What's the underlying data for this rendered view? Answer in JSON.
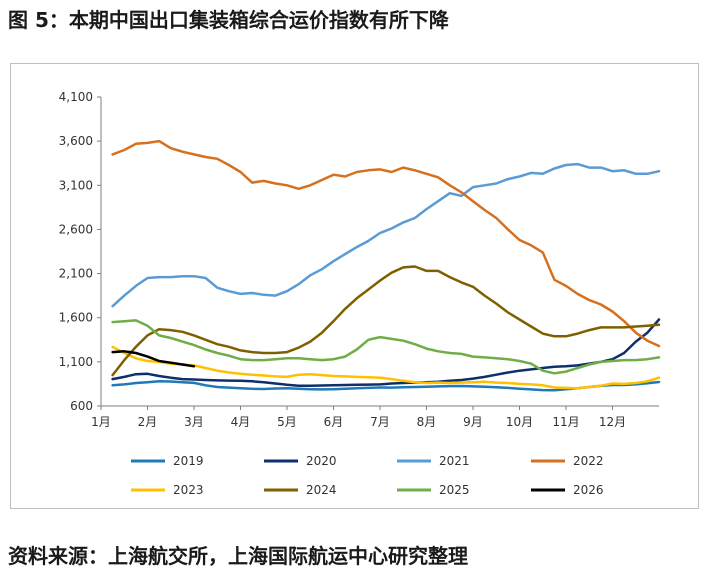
{
  "figure": {
    "title": "图 5：本期中国出口集装箱综合运价指数有所下降",
    "source": "资料来源：上海航交所，上海国际航运中心研究整理"
  },
  "chart_data": {
    "type": "line",
    "title": "",
    "xlabel": "",
    "ylabel": "",
    "xlim": [
      1,
      13
    ],
    "ylim": [
      600,
      4100
    ],
    "yticks": [
      600,
      1100,
      1600,
      2100,
      2600,
      3100,
      3600,
      4100
    ],
    "ytick_labels": [
      "600",
      "1,100",
      "1,600",
      "2,100",
      "2,600",
      "3,100",
      "3,600",
      "4,100"
    ],
    "xticks": [
      1,
      2,
      3,
      4,
      5,
      6,
      7,
      8,
      9,
      10,
      11,
      12
    ],
    "xtick_labels": [
      "1月",
      "2月",
      "3月",
      "4月",
      "5月",
      "6月",
      "7月",
      "8月",
      "9月",
      "10月",
      "11月",
      "12月"
    ],
    "grid": false,
    "legend_position": "bottom",
    "series": [
      {
        "name": "2019",
        "color": "#1f7ab5",
        "x": [
          1.25,
          1.5,
          1.75,
          2,
          2.25,
          2.5,
          2.75,
          3,
          3.25,
          3.5,
          3.75,
          4,
          4.25,
          4.5,
          4.75,
          5,
          5.25,
          5.5,
          5.75,
          6,
          6.25,
          6.5,
          6.75,
          7,
          7.25,
          7.5,
          7.75,
          8,
          8.25,
          8.5,
          8.75,
          9,
          9.25,
          9.5,
          9.75,
          10,
          10.25,
          10.5,
          10.75,
          11,
          11.25,
          11.5,
          11.75,
          12,
          12.25,
          12.5,
          12.75,
          13
        ],
        "y": [
          835,
          845,
          860,
          870,
          880,
          878,
          870,
          862,
          835,
          815,
          808,
          800,
          795,
          792,
          798,
          800,
          795,
          790,
          788,
          790,
          795,
          800,
          805,
          810,
          808,
          812,
          815,
          818,
          822,
          825,
          826,
          822,
          818,
          812,
          805,
          795,
          788,
          780,
          778,
          790,
          800,
          815,
          828,
          838,
          838,
          845,
          858,
          872
        ]
      },
      {
        "name": "2020",
        "color": "#0e2f6b",
        "x": [
          1.25,
          1.5,
          1.75,
          2,
          2.25,
          2.5,
          2.75,
          3,
          3.25,
          3.5,
          3.75,
          4,
          4.25,
          4.5,
          4.75,
          5,
          5.25,
          5.5,
          5.75,
          6,
          6.25,
          6.5,
          6.75,
          7,
          7.25,
          7.5,
          7.75,
          8,
          8.25,
          8.5,
          8.75,
          9,
          9.25,
          9.5,
          9.75,
          10,
          10.25,
          10.5,
          10.75,
          11,
          11.25,
          11.5,
          11.75,
          12,
          12.25,
          12.5,
          12.75,
          13
        ],
        "y": [
          905,
          930,
          960,
          965,
          940,
          920,
          905,
          900,
          895,
          890,
          888,
          885,
          880,
          870,
          855,
          840,
          830,
          830,
          832,
          835,
          838,
          840,
          842,
          845,
          855,
          860,
          865,
          870,
          875,
          885,
          895,
          910,
          930,
          955,
          980,
          1000,
          1015,
          1030,
          1045,
          1050,
          1060,
          1080,
          1100,
          1130,
          1200,
          1330,
          1430,
          1580
        ]
      },
      {
        "name": "2021",
        "color": "#5b9bd5",
        "x": [
          1.25,
          1.5,
          1.75,
          2,
          2.25,
          2.5,
          2.75,
          3,
          3.25,
          3.5,
          3.75,
          4,
          4.25,
          4.5,
          4.75,
          5,
          5.25,
          5.5,
          5.75,
          6,
          6.25,
          6.5,
          6.75,
          7,
          7.25,
          7.5,
          7.75,
          8,
          8.25,
          8.5,
          8.75,
          9,
          9.25,
          9.5,
          9.75,
          10,
          10.25,
          10.5,
          10.75,
          11,
          11.25,
          11.5,
          11.75,
          12,
          12.25,
          12.5,
          12.75,
          13
        ],
        "y": [
          1730,
          1850,
          1960,
          2050,
          2060,
          2060,
          2070,
          2070,
          2050,
          1940,
          1900,
          1870,
          1880,
          1860,
          1850,
          1900,
          1980,
          2080,
          2150,
          2240,
          2320,
          2400,
          2470,
          2560,
          2610,
          2680,
          2730,
          2830,
          2920,
          3010,
          2980,
          3080,
          3100,
          3120,
          3170,
          3200,
          3240,
          3230,
          3290,
          3330,
          3340,
          3300,
          3300,
          3260,
          3270,
          3230,
          3230,
          3260
        ]
      },
      {
        "name": "2022",
        "color": "#d5701f",
        "x": [
          1.25,
          1.5,
          1.75,
          2,
          2.25,
          2.5,
          2.75,
          3,
          3.25,
          3.5,
          3.75,
          4,
          4.25,
          4.5,
          4.75,
          5,
          5.25,
          5.5,
          5.75,
          6,
          6.25,
          6.5,
          6.75,
          7,
          7.25,
          7.5,
          7.75,
          8,
          8.25,
          8.5,
          8.75,
          9,
          9.25,
          9.5,
          9.75,
          10,
          10.25,
          10.5,
          10.75,
          11,
          11.25,
          11.5,
          11.75,
          12,
          12.25,
          12.5,
          12.75,
          13
        ],
        "y": [
          3450,
          3500,
          3570,
          3580,
          3600,
          3520,
          3480,
          3450,
          3420,
          3400,
          3330,
          3250,
          3130,
          3150,
          3120,
          3100,
          3060,
          3100,
          3160,
          3220,
          3200,
          3250,
          3270,
          3280,
          3250,
          3300,
          3270,
          3230,
          3190,
          3100,
          3020,
          2920,
          2820,
          2730,
          2600,
          2480,
          2420,
          2340,
          2030,
          1960,
          1870,
          1800,
          1750,
          1670,
          1560,
          1430,
          1340,
          1280
        ]
      },
      {
        "name": "2023",
        "color": "#ffc000",
        "x": [
          1.25,
          1.5,
          1.75,
          2,
          2.25,
          2.5,
          2.75,
          3,
          3.25,
          3.5,
          3.75,
          4,
          4.25,
          4.5,
          4.75,
          5,
          5.25,
          5.5,
          5.75,
          6,
          6.25,
          6.5,
          6.75,
          7,
          7.25,
          7.5,
          7.75,
          8,
          8.25,
          8.5,
          8.75,
          9,
          9.25,
          9.5,
          9.75,
          10,
          10.25,
          10.5,
          10.75,
          11,
          11.25,
          11.5,
          11.75,
          12,
          12.25,
          12.5,
          12.75,
          13
        ],
        "y": [
          1270,
          1200,
          1140,
          1110,
          1100,
          1080,
          1070,
          1060,
          1030,
          1000,
          980,
          965,
          955,
          945,
          935,
          930,
          955,
          960,
          950,
          940,
          935,
          930,
          925,
          920,
          905,
          885,
          870,
          860,
          865,
          860,
          865,
          870,
          875,
          865,
          860,
          850,
          845,
          835,
          810,
          805,
          800,
          815,
          830,
          855,
          850,
          860,
          880,
          920
        ]
      },
      {
        "name": "2024",
        "color": "#7f6000",
        "x": [
          1.25,
          1.5,
          1.75,
          2,
          2.25,
          2.5,
          2.75,
          3,
          3.25,
          3.5,
          3.75,
          4,
          4.25,
          4.5,
          4.75,
          5,
          5.25,
          5.5,
          5.75,
          6,
          6.25,
          6.5,
          6.75,
          7,
          7.25,
          7.5,
          7.75,
          8,
          8.25,
          8.5,
          8.75,
          9,
          9.25,
          9.5,
          9.75,
          10,
          10.25,
          10.5,
          10.75,
          11,
          11.25,
          11.5,
          11.75,
          12,
          12.25,
          12.5,
          12.75,
          13
        ],
        "y": [
          950,
          1120,
          1270,
          1400,
          1470,
          1460,
          1440,
          1400,
          1350,
          1300,
          1270,
          1230,
          1210,
          1200,
          1200,
          1210,
          1260,
          1330,
          1430,
          1560,
          1700,
          1820,
          1920,
          2020,
          2110,
          2170,
          2180,
          2130,
          2130,
          2060,
          2000,
          1950,
          1850,
          1760,
          1660,
          1580,
          1500,
          1420,
          1390,
          1390,
          1420,
          1460,
          1490,
          1490,
          1490,
          1500,
          1510,
          1520
        ]
      },
      {
        "name": "2025",
        "color": "#70ad47",
        "x": [
          1.25,
          1.5,
          1.75,
          2,
          2.25,
          2.5,
          2.75,
          3,
          3.25,
          3.5,
          3.75,
          4,
          4.25,
          4.5,
          4.75,
          5,
          5.25,
          5.5,
          5.75,
          6,
          6.25,
          6.5,
          6.75,
          7,
          7.25,
          7.5,
          7.75,
          8,
          8.25,
          8.5,
          8.75,
          9,
          9.25,
          9.5,
          9.75,
          10,
          10.25,
          10.5,
          10.75,
          11,
          11.25,
          11.5,
          11.75,
          12,
          12.25,
          12.5,
          12.75,
          13
        ],
        "y": [
          1550,
          1560,
          1570,
          1510,
          1400,
          1370,
          1330,
          1290,
          1240,
          1200,
          1170,
          1130,
          1120,
          1120,
          1130,
          1140,
          1140,
          1130,
          1120,
          1130,
          1160,
          1240,
          1350,
          1380,
          1360,
          1340,
          1300,
          1250,
          1220,
          1200,
          1190,
          1160,
          1150,
          1140,
          1130,
          1110,
          1080,
          1000,
          970,
          990,
          1030,
          1070,
          1100,
          1110,
          1120,
          1120,
          1130,
          1150
        ]
      },
      {
        "name": "2026",
        "color": "#000000",
        "x": [
          1.25,
          1.5,
          1.75,
          2,
          2.25,
          2.5,
          2.75,
          3
        ],
        "y": [
          1210,
          1220,
          1200,
          1160,
          1110,
          1090,
          1070,
          1050
        ]
      }
    ]
  }
}
